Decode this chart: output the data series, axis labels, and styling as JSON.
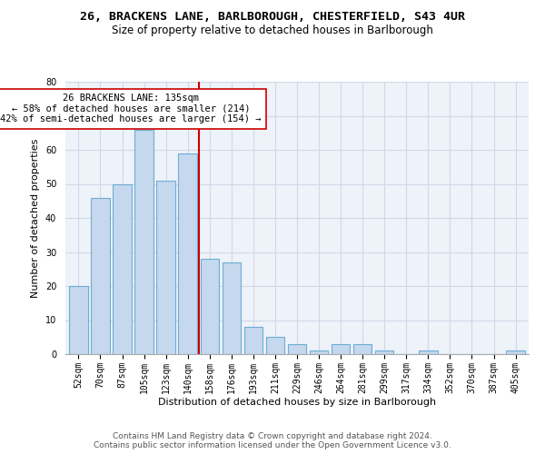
{
  "title_line1": "26, BRACKENS LANE, BARLBOROUGH, CHESTERFIELD, S43 4UR",
  "title_line2": "Size of property relative to detached houses in Barlborough",
  "xlabel": "Distribution of detached houses by size in Barlborough",
  "ylabel": "Number of detached properties",
  "categories": [
    "52sqm",
    "70sqm",
    "87sqm",
    "105sqm",
    "123sqm",
    "140sqm",
    "158sqm",
    "176sqm",
    "193sqm",
    "211sqm",
    "229sqm",
    "246sqm",
    "264sqm",
    "281sqm",
    "299sqm",
    "317sqm",
    "334sqm",
    "352sqm",
    "370sqm",
    "387sqm",
    "405sqm"
  ],
  "values": [
    20,
    46,
    50,
    66,
    51,
    59,
    28,
    27,
    8,
    5,
    3,
    1,
    3,
    3,
    1,
    0,
    1,
    0,
    0,
    0,
    1
  ],
  "bar_color": "#c5d8ed",
  "bar_edge_color": "#6baed6",
  "bar_width": 0.85,
  "vline_x_index": 5,
  "vline_color": "#cc0000",
  "annotation_text": "26 BRACKENS LANE: 135sqm\n← 58% of detached houses are smaller (214)\n42% of semi-detached houses are larger (154) →",
  "annotation_box_color": "#ffffff",
  "annotation_box_edge": "#cc0000",
  "ylim": [
    0,
    80
  ],
  "yticks": [
    0,
    10,
    20,
    30,
    40,
    50,
    60,
    70,
    80
  ],
  "grid_color": "#d0d8e8",
  "background_color": "#eef2f9",
  "footer_line1": "Contains HM Land Registry data © Crown copyright and database right 2024.",
  "footer_line2": "Contains public sector information licensed under the Open Government Licence v3.0.",
  "title_fontsize": 9.5,
  "subtitle_fontsize": 8.5,
  "axis_label_fontsize": 8,
  "tick_fontsize": 7,
  "annotation_fontsize": 7.5,
  "footer_fontsize": 6.5
}
